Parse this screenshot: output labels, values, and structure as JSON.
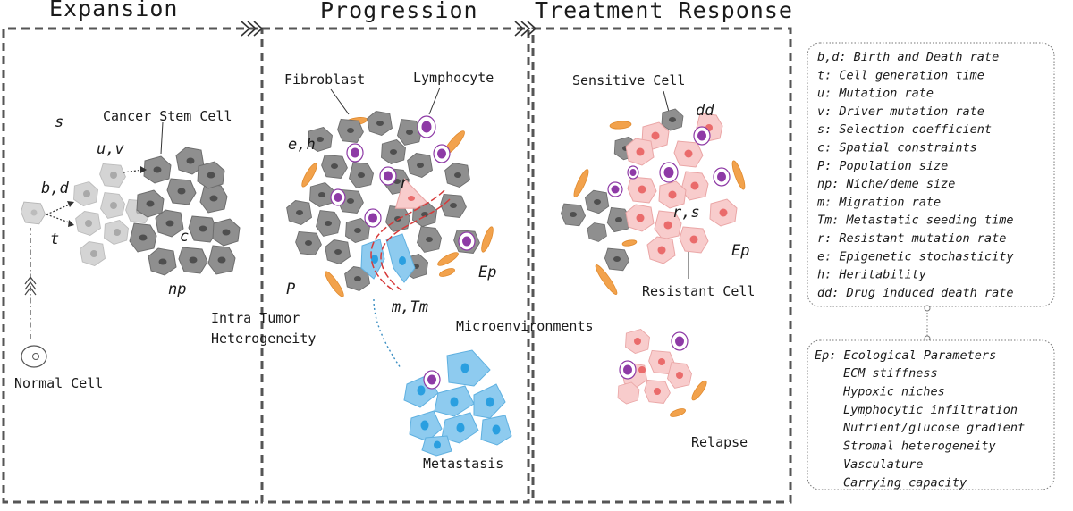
{
  "stages": {
    "expansion": "Expansion",
    "progression": "Progression",
    "treatment": "Treatment Response"
  },
  "labels": {
    "normal_cell": "Normal Cell",
    "cancer_stem_cell": "Cancer Stem Cell",
    "fibroblast": "Fibroblast",
    "lymphocyte": "Lymphocyte",
    "intra_tumor": "Intra Tumor",
    "heterogeneity": "Heterogeneity",
    "microenvironments": "Microenvironments",
    "metastasis": "Metastasis",
    "sensitive_cell": "Sensitive Cell",
    "resistant_cell": "Resistant Cell",
    "relapse": "Relapse"
  },
  "params": {
    "s": "s",
    "uv": "u,v",
    "bd": "b,d",
    "t": "t",
    "c": "c",
    "np": "np",
    "eh": "e,h",
    "r": "r",
    "P": "P",
    "mTm": "m,Tm",
    "Ep": "Ep",
    "dd": "dd",
    "rs": "r,s",
    "Ep2": "Ep"
  },
  "legend_params": [
    "b,d: Birth and Death rate",
    "t: Cell generation time",
    "u: Mutation rate",
    "v: Driver mutation rate",
    "s: Selection coefficient",
    "c: Spatial constraints",
    "P: Population size",
    "np: Niche/deme size",
    "m: Migration rate",
    "Tm: Metastatic seeding time",
    "r: Resistant mutation rate",
    "e: Epigenetic stochasticity",
    "h: Heritability",
    "dd: Drug induced death rate"
  ],
  "legend_ecology": {
    "title": "Ep: Ecological Parameters",
    "items": [
      "ECM stiffness",
      "Hypoxic niches",
      "Lymphocytic infiltration",
      "Nutrient/glucose gradient",
      "Stromal heterogeneity",
      "Vasculature",
      "Carrying capacity"
    ]
  },
  "colors": {
    "gray_cell": "#8f8f8f",
    "light_cell": "#d2d2d2",
    "pink_cell": "#f8cccc",
    "pink_nucleus": "#ea6b6b",
    "blue_cell": "#8ecbef",
    "blue_nucleus": "#2a9fe0",
    "lymphocyte": "#8e3aa6",
    "fibroblast": "#f2a24c",
    "red_dash": "#d73a3a"
  }
}
